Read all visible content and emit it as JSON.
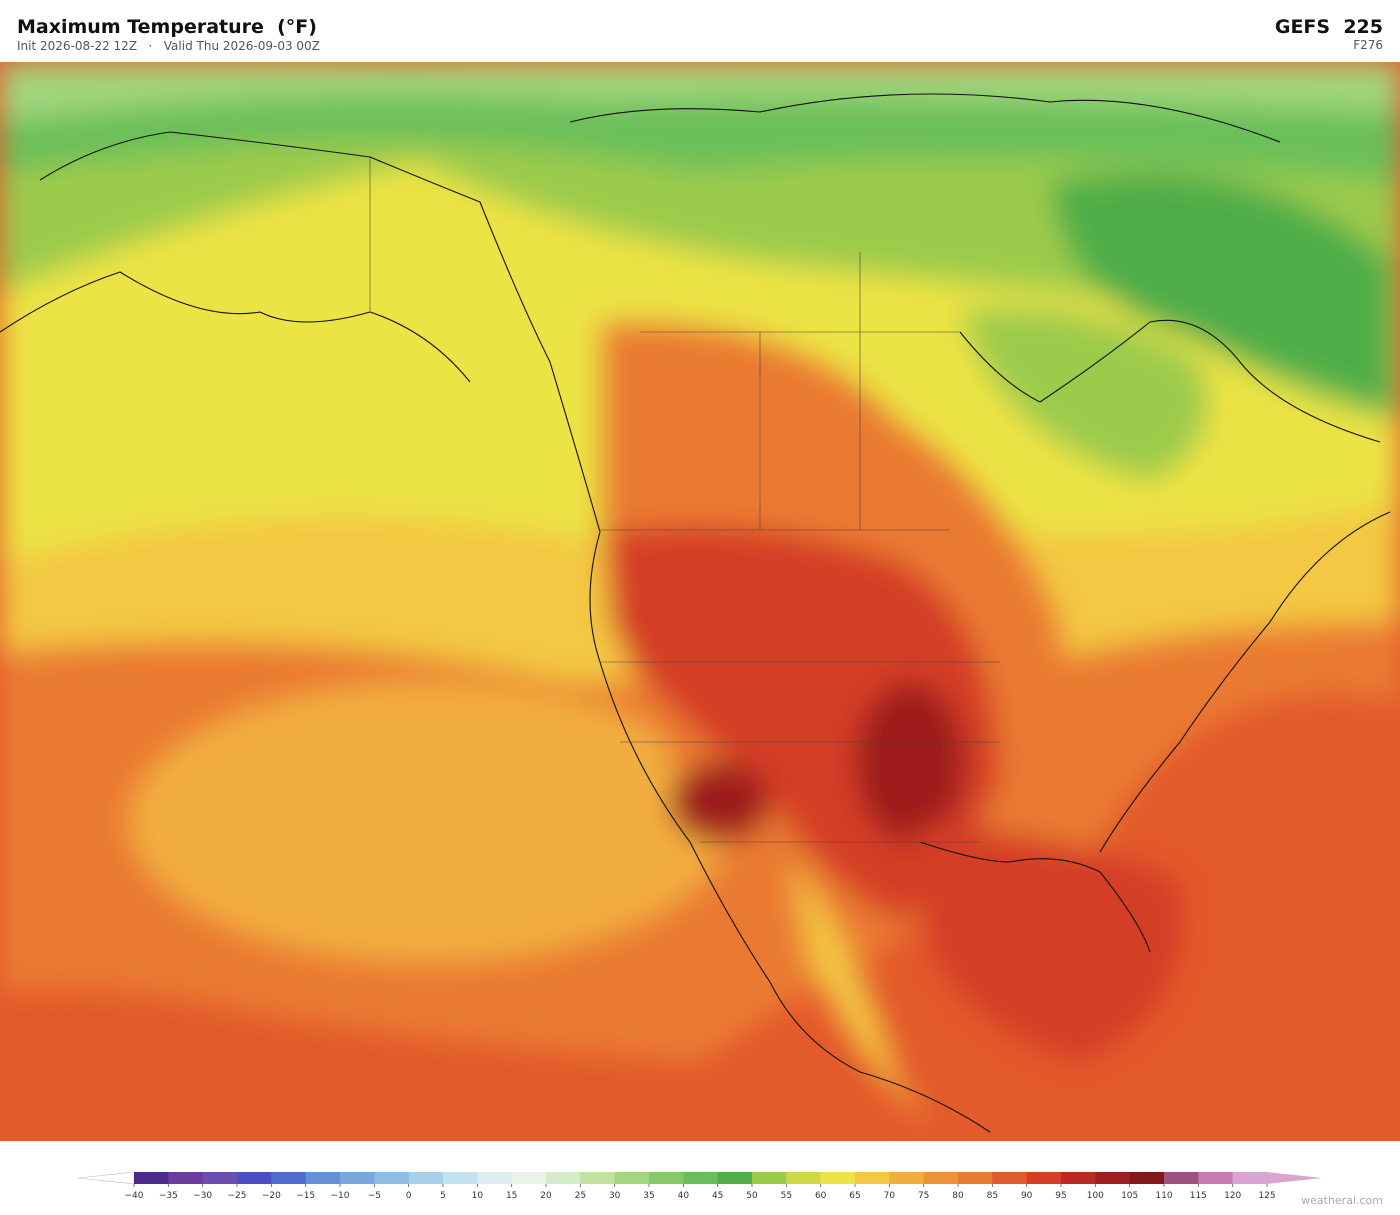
{
  "header": {
    "title": "Maximum Temperature  (°F)",
    "init": "Init 2026-08-22 12Z",
    "separator": "·",
    "valid": "Valid Thu 2026-09-03 00Z",
    "model": "GEFS  225",
    "forecast_hour": "F276"
  },
  "colorbar": {
    "ticks": [
      {
        "value": -40,
        "label": "−40"
      },
      {
        "value": -35,
        "label": "−35"
      },
      {
        "value": -30,
        "label": "−30"
      },
      {
        "value": -25,
        "label": "−25"
      },
      {
        "value": -20,
        "label": "−20"
      },
      {
        "value": -15,
        "label": "−15"
      },
      {
        "value": -10,
        "label": "−10"
      },
      {
        "value": -5,
        "label": "−5"
      },
      0,
      5,
      10,
      15,
      20,
      25,
      30,
      35,
      40,
      45,
      50,
      55,
      60,
      65,
      70,
      75,
      80,
      85,
      90,
      95,
      100,
      105,
      110,
      115,
      120,
      125
    ],
    "colors": [
      "#4c2a8c",
      "#6a3d9a",
      "#6b4fb0",
      "#4c4fc4",
      "#4f6dd0",
      "#6690d6",
      "#79a6dc",
      "#8fbce2",
      "#a8d0ea",
      "#c3e2f0",
      "#dcedf2",
      "#e8f4e6",
      "#d4ecc8",
      "#bfe29e",
      "#a3d67e",
      "#86c966",
      "#6abf5a",
      "#4fad4a",
      "#9ccb4c",
      "#cfd945",
      "#ece345",
      "#f3c843",
      "#f2ad3f",
      "#ef9236",
      "#ea7a31",
      "#e05b2b",
      "#d43e25",
      "#bc2922",
      "#9e1d1f",
      "#831719",
      "#a0507f",
      "#c57ab0",
      "#d9a4d0"
    ],
    "under_color": "#ffffff",
    "over_color": "#d9a4d0"
  },
  "footer": {
    "credit": "weatherai.com"
  }
}
